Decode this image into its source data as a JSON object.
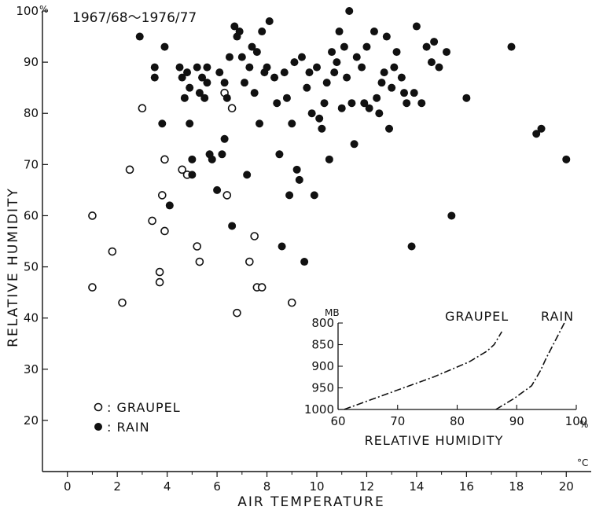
{
  "chart_data": [
    {
      "type": "scatter",
      "title": "1967/68～1976/77",
      "xlabel": "AIR TEMPERATURE",
      "ylabel": "RELATIVE HUMIDITY",
      "x_unit": "°C",
      "y_unit": "%",
      "xlim": [
        -1,
        21
      ],
      "ylim": [
        10,
        100
      ],
      "x_ticks": [
        "0",
        "2",
        "4",
        "6",
        "8",
        "10",
        "12",
        "14",
        "16",
        "18",
        "20"
      ],
      "y_ticks": [
        "20",
        "30",
        "40",
        "50",
        "60",
        "70",
        "80",
        "90",
        "100"
      ],
      "grid": false,
      "legend": "bottom-left",
      "legend_entries": [
        {
          "symbol": "open-circle",
          "label": ": GRAUPEL"
        },
        {
          "symbol": "filled-circle",
          "label": ": RAIN"
        }
      ],
      "series": [
        {
          "name": "GRAUPEL",
          "marker": "open-circle",
          "points": [
            [
              1.0,
              60
            ],
            [
              1.0,
              46
            ],
            [
              1.8,
              53
            ],
            [
              2.2,
              43
            ],
            [
              2.5,
              69
            ],
            [
              3.0,
              81
            ],
            [
              3.4,
              59
            ],
            [
              3.7,
              49
            ],
            [
              3.7,
              47
            ],
            [
              3.8,
              64
            ],
            [
              3.9,
              71
            ],
            [
              3.9,
              57
            ],
            [
              4.6,
              69
            ],
            [
              4.8,
              68
            ],
            [
              5.2,
              54
            ],
            [
              5.3,
              51
            ],
            [
              6.3,
              84
            ],
            [
              6.4,
              64
            ],
            [
              6.6,
              81
            ],
            [
              6.8,
              41
            ],
            [
              7.3,
              51
            ],
            [
              7.5,
              56
            ],
            [
              7.6,
              46
            ],
            [
              7.8,
              46
            ],
            [
              9.0,
              43
            ]
          ]
        },
        {
          "name": "RAIN",
          "marker": "filled-circle",
          "points": [
            [
              2.9,
              95
            ],
            [
              3.5,
              89
            ],
            [
              3.5,
              87
            ],
            [
              3.8,
              78
            ],
            [
              3.9,
              93
            ],
            [
              4.1,
              62
            ],
            [
              4.5,
              89
            ],
            [
              4.6,
              87
            ],
            [
              4.7,
              83
            ],
            [
              4.8,
              88
            ],
            [
              4.9,
              85
            ],
            [
              4.9,
              78
            ],
            [
              5.0,
              71
            ],
            [
              5.0,
              68
            ],
            [
              5.2,
              89
            ],
            [
              5.3,
              84
            ],
            [
              5.4,
              87
            ],
            [
              5.5,
              83
            ],
            [
              5.6,
              89
            ],
            [
              5.6,
              86
            ],
            [
              5.7,
              72
            ],
            [
              5.8,
              71
            ],
            [
              6.0,
              65
            ],
            [
              6.1,
              88
            ],
            [
              6.2,
              72
            ],
            [
              6.3,
              75
            ],
            [
              6.3,
              86
            ],
            [
              6.4,
              83
            ],
            [
              6.5,
              91
            ],
            [
              6.6,
              58
            ],
            [
              6.7,
              97
            ],
            [
              6.8,
              95
            ],
            [
              6.9,
              96
            ],
            [
              7.0,
              91
            ],
            [
              7.1,
              86
            ],
            [
              7.2,
              68
            ],
            [
              7.3,
              89
            ],
            [
              7.4,
              93
            ],
            [
              7.5,
              84
            ],
            [
              7.6,
              92
            ],
            [
              7.7,
              78
            ],
            [
              7.8,
              96
            ],
            [
              7.9,
              88
            ],
            [
              8.0,
              89
            ],
            [
              8.1,
              98
            ],
            [
              8.3,
              87
            ],
            [
              8.4,
              82
            ],
            [
              8.5,
              72
            ],
            [
              8.6,
              54
            ],
            [
              8.7,
              88
            ],
            [
              8.8,
              83
            ],
            [
              8.9,
              64
            ],
            [
              9.0,
              78
            ],
            [
              9.1,
              90
            ],
            [
              9.2,
              69
            ],
            [
              9.3,
              67
            ],
            [
              9.4,
              91
            ],
            [
              9.5,
              51
            ],
            [
              9.6,
              85
            ],
            [
              9.7,
              88
            ],
            [
              9.8,
              80
            ],
            [
              9.9,
              64
            ],
            [
              10.0,
              89
            ],
            [
              10.1,
              79
            ],
            [
              10.2,
              77
            ],
            [
              10.3,
              82
            ],
            [
              10.4,
              86
            ],
            [
              10.5,
              71
            ],
            [
              10.6,
              92
            ],
            [
              10.7,
              88
            ],
            [
              10.8,
              90
            ],
            [
              10.9,
              96
            ],
            [
              11.0,
              81
            ],
            [
              11.1,
              93
            ],
            [
              11.2,
              87
            ],
            [
              11.3,
              100
            ],
            [
              11.4,
              82
            ],
            [
              11.5,
              74
            ],
            [
              11.6,
              91
            ],
            [
              11.8,
              89
            ],
            [
              11.9,
              82
            ],
            [
              12.0,
              93
            ],
            [
              12.1,
              81
            ],
            [
              12.3,
              96
            ],
            [
              12.4,
              83
            ],
            [
              12.5,
              80
            ],
            [
              12.6,
              86
            ],
            [
              12.7,
              88
            ],
            [
              12.8,
              95
            ],
            [
              12.9,
              77
            ],
            [
              13.0,
              85
            ],
            [
              13.1,
              89
            ],
            [
              13.2,
              92
            ],
            [
              13.4,
              87
            ],
            [
              13.5,
              84
            ],
            [
              13.6,
              82
            ],
            [
              13.8,
              54
            ],
            [
              13.9,
              84
            ],
            [
              14.0,
              97
            ],
            [
              14.2,
              82
            ],
            [
              14.4,
              93
            ],
            [
              14.6,
              90
            ],
            [
              14.7,
              94
            ],
            [
              14.9,
              89
            ],
            [
              15.2,
              92
            ],
            [
              15.4,
              60
            ],
            [
              16.0,
              83
            ],
            [
              17.8,
              93
            ],
            [
              18.8,
              76
            ],
            [
              19.0,
              77
            ],
            [
              20.0,
              71
            ]
          ]
        }
      ]
    },
    {
      "type": "line",
      "xlabel": "RELATIVE HUMIDITY",
      "ylabel": "MB",
      "x_unit": "%",
      "xlim": [
        60,
        100
      ],
      "ylim": [
        1000,
        800
      ],
      "x_ticks": [
        "60",
        "70",
        "80",
        "90",
        "100"
      ],
      "y_ticks": [
        "800",
        "850",
        "900",
        "950",
        "1000"
      ],
      "grid": false,
      "series": [
        {
          "name": "GRAUPEL",
          "x": [
            61,
            66,
            71,
            76,
            82,
            85,
            86.2,
            87.5
          ],
          "y": [
            1000,
            975,
            950,
            925,
            890,
            865,
            850,
            820
          ]
        },
        {
          "name": "RAIN",
          "x": [
            86.5,
            89.5,
            92.5,
            94,
            95,
            96.5,
            98
          ],
          "y": [
            1000,
            975,
            945,
            910,
            880,
            840,
            800
          ]
        }
      ]
    }
  ]
}
